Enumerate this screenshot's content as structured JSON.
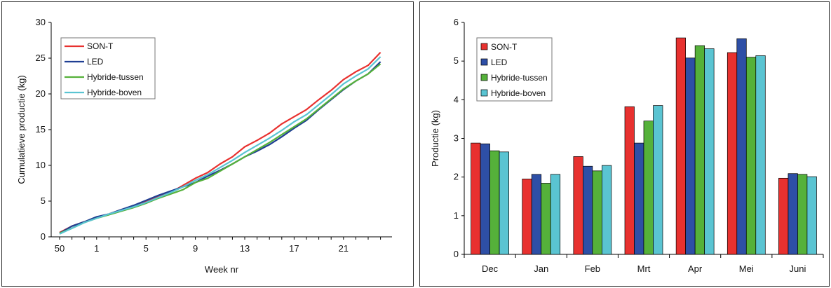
{
  "chart_data": [
    {
      "type": "line",
      "xlabel": "Week nr",
      "ylabel": "Cumulatieve productie (kg)",
      "ylim": [
        0,
        30
      ],
      "yticks": [
        "0",
        "5",
        "10",
        "15",
        "20",
        "25",
        "30"
      ],
      "xticks": [
        "50",
        "1",
        "5",
        "9",
        "13",
        "17",
        "21"
      ],
      "x": [
        50,
        51,
        52,
        1,
        2,
        3,
        4,
        5,
        6,
        7,
        8,
        9,
        10,
        11,
        12,
        13,
        14,
        15,
        16,
        17,
        18,
        19,
        20,
        21,
        22,
        23,
        24
      ],
      "legend_position": "top-left",
      "grid": false,
      "series": [
        {
          "name": "SON-T",
          "color": "#e8312f",
          "values": [
            0.6,
            1.5,
            2.1,
            2.7,
            3.2,
            3.8,
            4.3,
            5.0,
            5.6,
            6.2,
            7.2,
            8.2,
            9.0,
            10.2,
            11.2,
            12.6,
            13.5,
            14.5,
            15.8,
            16.8,
            17.8,
            19.2,
            20.5,
            22.0,
            23.1,
            24.0,
            25.8
          ]
        },
        {
          "name": "LED",
          "color": "#1f3f93",
          "values": [
            0.5,
            1.5,
            2.1,
            2.8,
            3.2,
            3.8,
            4.4,
            5.1,
            5.8,
            6.4,
            7.0,
            7.6,
            8.5,
            9.3,
            10.2,
            11.2,
            12.0,
            12.9,
            14.0,
            15.2,
            16.3,
            17.8,
            19.2,
            20.6,
            21.8,
            22.8,
            24.5
          ]
        },
        {
          "name": "Hybride-tussen",
          "color": "#55b13a",
          "values": [
            0.5,
            1.2,
            2.0,
            2.6,
            3.1,
            3.6,
            4.1,
            4.7,
            5.4,
            6.0,
            6.6,
            7.6,
            8.2,
            9.2,
            10.2,
            11.2,
            12.2,
            13.2,
            14.3,
            15.4,
            16.5,
            17.9,
            19.3,
            20.7,
            21.8,
            22.8,
            24.2
          ]
        },
        {
          "name": "Hybride-boven",
          "color": "#5ac4d2",
          "values": [
            0.4,
            1.2,
            2.0,
            2.6,
            3.2,
            3.7,
            4.2,
            4.8,
            5.5,
            6.2,
            7.0,
            7.9,
            8.7,
            9.7,
            10.7,
            11.8,
            12.8,
            13.8,
            14.9,
            16.1,
            17.1,
            18.5,
            19.9,
            21.4,
            22.5,
            23.5,
            25.2
          ]
        }
      ]
    },
    {
      "type": "bar",
      "xlabel": "",
      "ylabel": "Productie (kg)",
      "ylim": [
        0,
        6
      ],
      "yticks": [
        "0",
        "1",
        "2",
        "3",
        "4",
        "5",
        "6"
      ],
      "categories": [
        "Dec",
        "Jan",
        "Feb",
        "Mrt",
        "Apr",
        "Mei",
        "Juni"
      ],
      "legend_position": "top-left",
      "grid": false,
      "series": [
        {
          "name": "SON-T",
          "color": "#e8312f",
          "values": [
            2.88,
            1.95,
            2.53,
            3.82,
            5.6,
            5.22,
            1.97
          ]
        },
        {
          "name": "LED",
          "color": "#2e4fa6",
          "values": [
            2.86,
            2.07,
            2.28,
            2.88,
            5.08,
            5.58,
            2.09
          ]
        },
        {
          "name": "Hybride-tussen",
          "color": "#55b13a",
          "values": [
            2.68,
            1.84,
            2.16,
            3.45,
            5.4,
            5.1,
            2.07
          ]
        },
        {
          "name": "Hybride-boven",
          "color": "#5ac4d2",
          "values": [
            2.65,
            2.07,
            2.3,
            3.85,
            5.32,
            5.14,
            2.01
          ]
        }
      ]
    }
  ]
}
